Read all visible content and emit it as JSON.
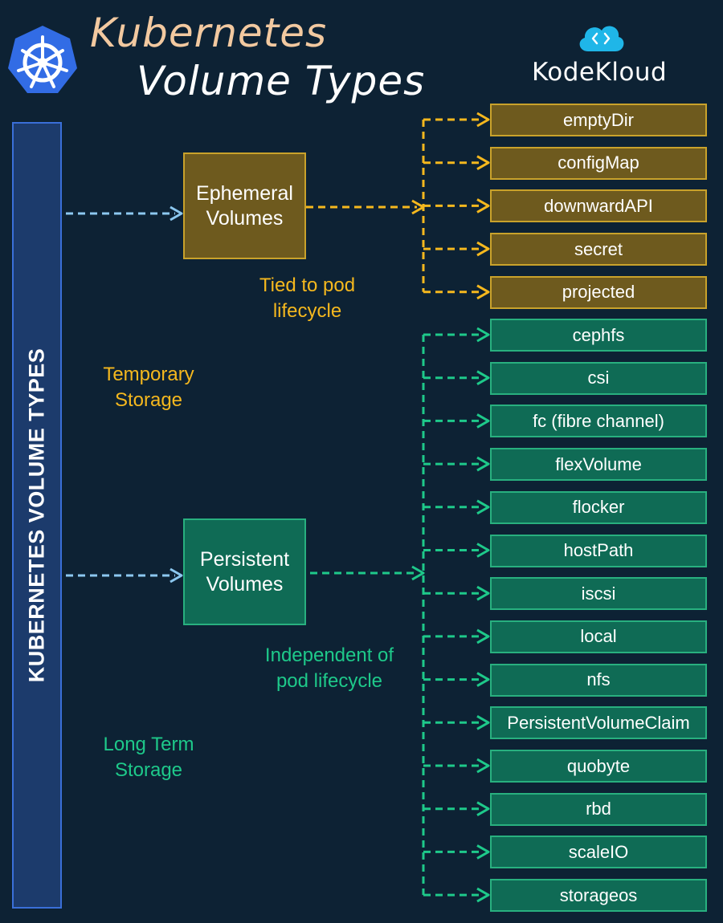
{
  "header": {
    "title_line1": "Kubernetes",
    "title_line2": "Volume Types",
    "logo_icon": "kubernetes-helm-icon",
    "brand_icon": "cloud-code-icon",
    "brand_name": "KodeKloud"
  },
  "sidebar": {
    "label": "KUBERNETES VOLUME TYPES"
  },
  "categories": {
    "ephemeral": {
      "label": "Ephemeral\nVolumes",
      "note": "Tied to pod\nlifecycle",
      "storage": "Temporary\nStorage",
      "color": "#f5b81e"
    },
    "persistent": {
      "label": "Persistent\nVolumes",
      "note": "Independent of\npod lifecycle",
      "storage": "Long Term\nStorage",
      "color": "#1ec98a"
    }
  },
  "ephemeral_volumes": [
    "emptyDir",
    "configMap",
    "downwardAPI",
    "secret",
    "projected"
  ],
  "persistent_volumes": [
    "cephfs",
    "csi",
    "fc (fibre channel)",
    "flexVolume",
    "flocker",
    "hostPath",
    "iscsi",
    "local",
    "nfs",
    "PersistentVolumeClaim",
    "quobyte",
    "rbd",
    "scaleIO",
    "storageos"
  ],
  "colors": {
    "background": "#0d2234",
    "sidebar": "#1c3b6c",
    "ephemeral_fill": "#6e5a1e",
    "persistent_fill": "#0f6b55",
    "link_blue": "#8cc8f0"
  }
}
